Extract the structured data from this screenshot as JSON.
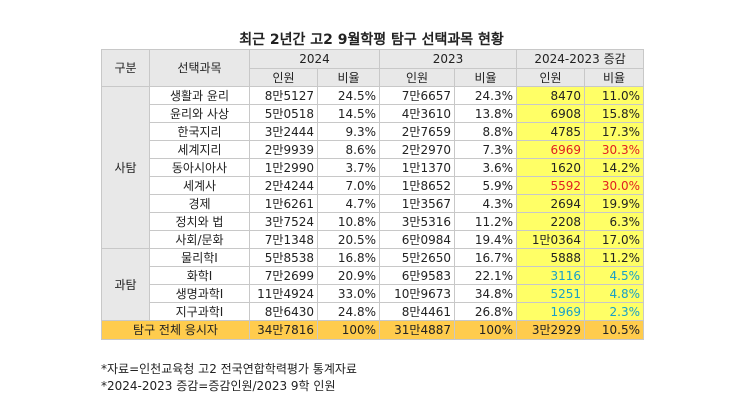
{
  "title": "최근 2년간 고2 9월학평 탐구 선택과목 현황",
  "headers": {
    "category": "구분",
    "subject": "선택과목",
    "year_2024": "2024",
    "year_2023": "2023",
    "change": "2024-2023 증감",
    "count": "인원",
    "ratio": "비율"
  },
  "groups": [
    {
      "name": "사탐",
      "rows": [
        {
          "subject": "생활과 윤리",
          "c2024": "8만5127",
          "r2024": "24.5%",
          "c2023": "7만6657",
          "r2023": "24.3%",
          "dc": "8470",
          "dr": "11.0%",
          "tone": ""
        },
        {
          "subject": "윤리와 사상",
          "c2024": "5만0518",
          "r2024": "14.5%",
          "c2023": "4만3610",
          "r2023": "13.8%",
          "dc": "6908",
          "dr": "15.8%",
          "tone": ""
        },
        {
          "subject": "한국지리",
          "c2024": "3만2444",
          "r2024": "9.3%",
          "c2023": "2만7659",
          "r2023": "8.8%",
          "dc": "4785",
          "dr": "17.3%",
          "tone": ""
        },
        {
          "subject": "세계지리",
          "c2024": "2만9939",
          "r2024": "8.6%",
          "c2023": "2만2970",
          "r2023": "7.3%",
          "dc": "6969",
          "dr": "30.3%",
          "tone": "red"
        },
        {
          "subject": "동아시아사",
          "c2024": "1만2990",
          "r2024": "3.7%",
          "c2023": "1만1370",
          "r2023": "3.6%",
          "dc": "1620",
          "dr": "14.2%",
          "tone": ""
        },
        {
          "subject": "세계사",
          "c2024": "2만4244",
          "r2024": "7.0%",
          "c2023": "1만8652",
          "r2023": "5.9%",
          "dc": "5592",
          "dr": "30.0%",
          "tone": "red"
        },
        {
          "subject": "경제",
          "c2024": "1만6261",
          "r2024": "4.7%",
          "c2023": "1만3567",
          "r2023": "4.3%",
          "dc": "2694",
          "dr": "19.9%",
          "tone": ""
        },
        {
          "subject": "정치와 법",
          "c2024": "3만7524",
          "r2024": "10.8%",
          "c2023": "3만5316",
          "r2023": "11.2%",
          "dc": "2208",
          "dr": "6.3%",
          "tone": ""
        },
        {
          "subject": "사회/문화",
          "c2024": "7만1348",
          "r2024": "20.5%",
          "c2023": "6만0984",
          "r2023": "19.4%",
          "dc": "1만0364",
          "dr": "17.0%",
          "tone": ""
        }
      ]
    },
    {
      "name": "과탐",
      "rows": [
        {
          "subject": "물리학I",
          "c2024": "5만8538",
          "r2024": "16.8%",
          "c2023": "5만2650",
          "r2023": "16.7%",
          "dc": "5888",
          "dr": "11.2%",
          "tone": ""
        },
        {
          "subject": "화학I",
          "c2024": "7만2699",
          "r2024": "20.9%",
          "c2023": "6만9583",
          "r2023": "22.1%",
          "dc": "3116",
          "dr": "4.5%",
          "tone": "cyan"
        },
        {
          "subject": "생명과학I",
          "c2024": "11만4924",
          "r2024": "33.0%",
          "c2023": "10만9673",
          "r2023": "34.8%",
          "dc": "5251",
          "dr": "4.8%",
          "tone": "cyan"
        },
        {
          "subject": "지구과학I",
          "c2024": "8만6430",
          "r2024": "24.8%",
          "c2023": "8만4461",
          "r2023": "26.8%",
          "dc": "1969",
          "dr": "2.3%",
          "tone": "cyan"
        }
      ]
    }
  ],
  "total": {
    "label": "탐구 전체 응시자",
    "c2024": "34만7816",
    "r2024": "100%",
    "c2023": "31만4887",
    "r2023": "100%",
    "dc": "3만2929",
    "dr": "10.5%"
  },
  "notes": [
    "*자료=인천교육청 고2 전국연합학력평가 통계자료",
    "*2024-2023 증감=증감인원/2023 9학 인원"
  ],
  "colors": {
    "highlight": "#ffff66",
    "total_row": "#ffcc4d",
    "header": "#e8e8e8",
    "red": "#e02020",
    "cyan": "#19a0c8"
  }
}
